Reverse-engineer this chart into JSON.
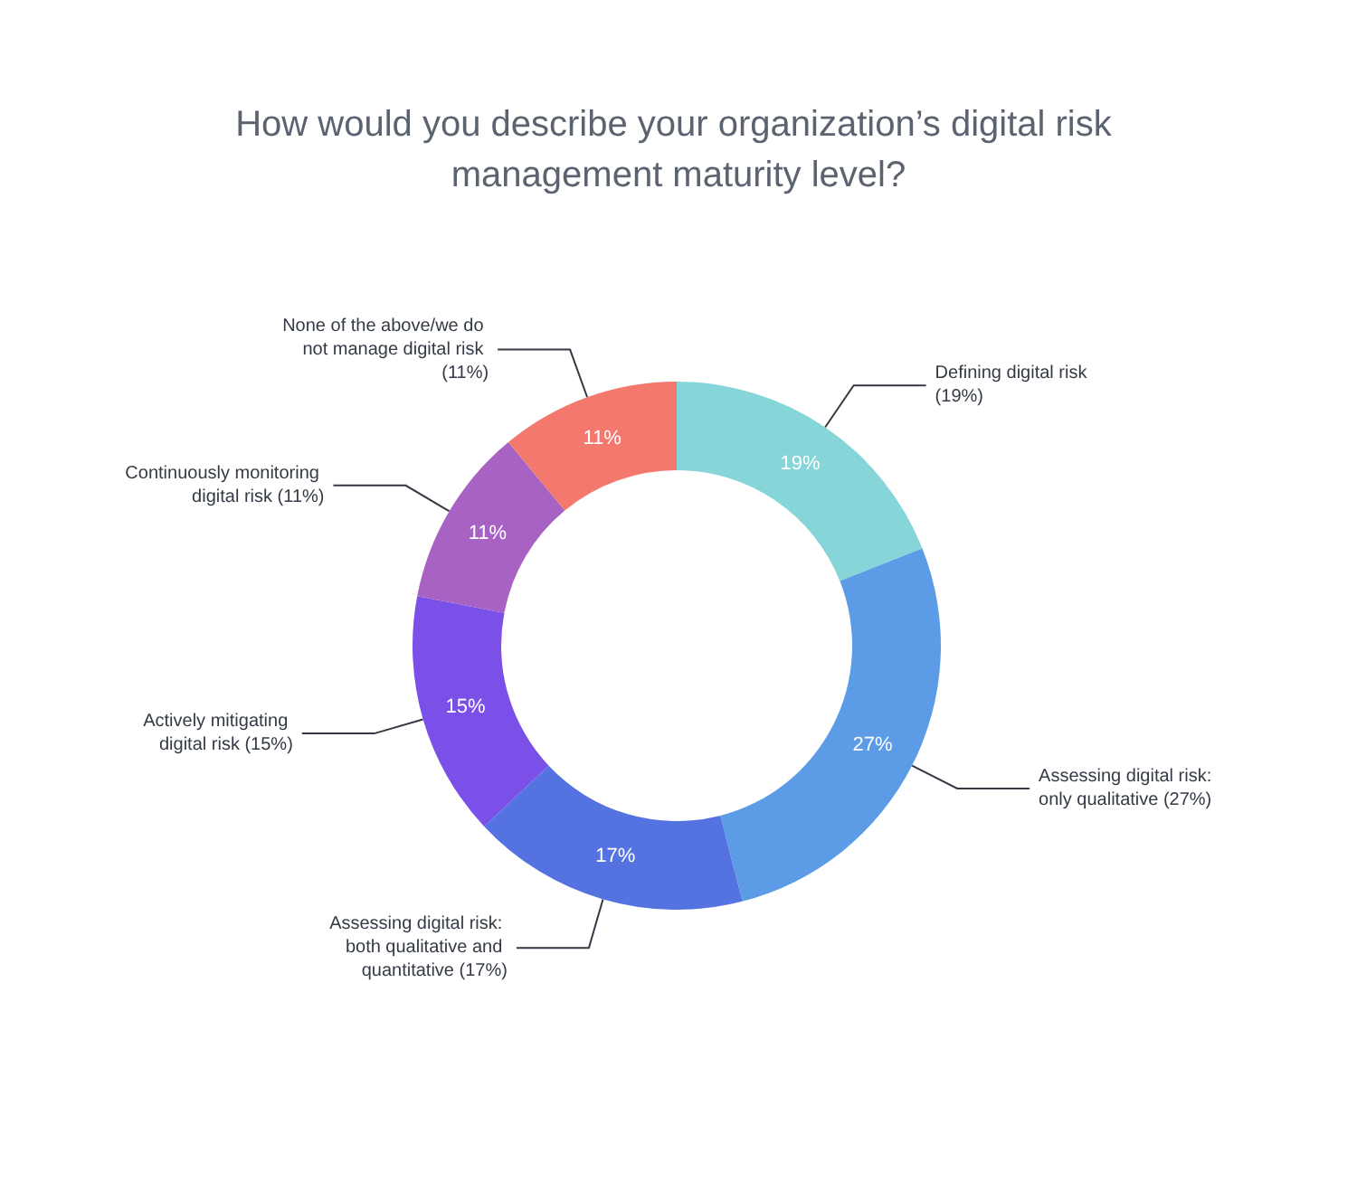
{
  "chart_data": {
    "type": "donut",
    "title": "How would you describe your organization’s digital risk management maturity level?",
    "categories": [
      "Defining digital risk (19%)",
      "Assessing digital risk: only qualitative (27%)",
      "Assessing digital risk: both qualitative and quantitative (17%)",
      "Actively mitigating digital risk (15%)",
      "Continuously monitoring digital risk (11%)",
      "None of the above/we do not manage digital risk (11%)"
    ],
    "values": [
      19,
      27,
      17,
      15,
      11,
      11
    ],
    "colors": [
      "#86d5d9",
      "#5c9ce6",
      "#5473e1",
      "#7b50e8",
      "#a762c4",
      "#f3786e"
    ],
    "value_labels": [
      "19%",
      "27%",
      "17%",
      "15%",
      "11%",
      "11%"
    ]
  }
}
